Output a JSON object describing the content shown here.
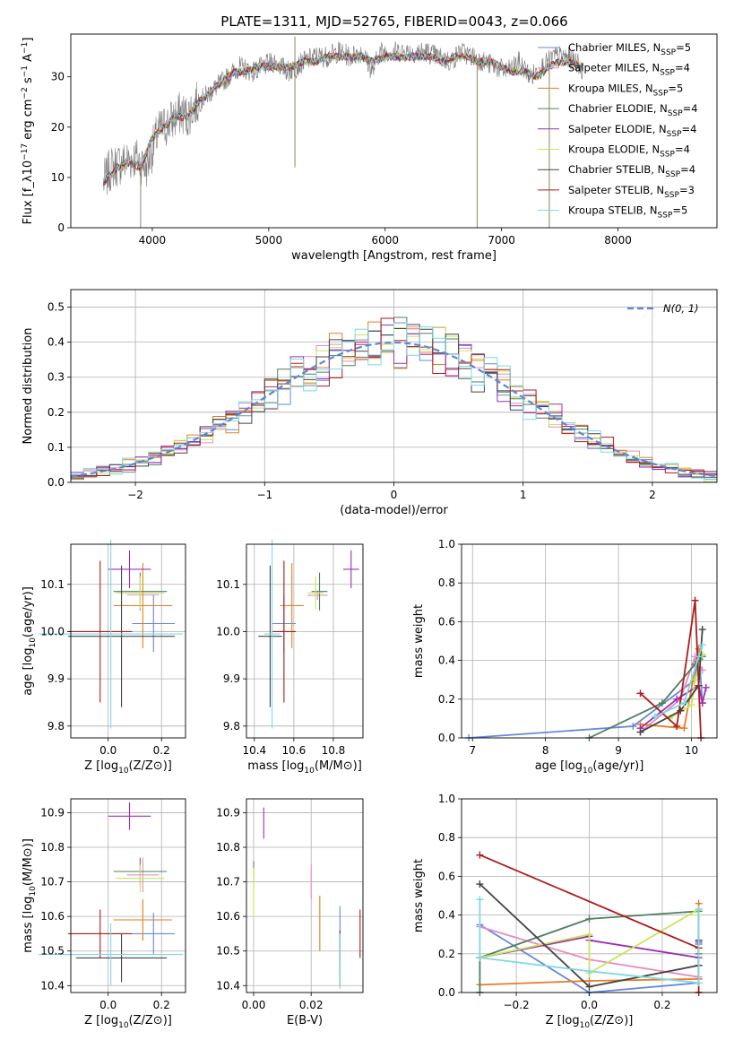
{
  "figure_title": "PLATE=1311, MJD=52765, FIBERID=0043, z=0.066",
  "colors": {
    "Chabrier MILES": "#6688dd",
    "Salpeter MILES": "#e78ac3",
    "Kroupa MILES": "#e67e22",
    "Chabrier ELODIE": "#4f7f5f",
    "Salpeter ELODIE": "#9b30b0",
    "Kroupa ELODIE": "#c8e65a",
    "Chabrier STELIB": "#444444",
    "Salpeter STELIB": "#b01a1a",
    "Kroupa STELIB": "#7fd8e6",
    "normal": "#5b87d6"
  },
  "chart_data": [
    {
      "id": "spectrum",
      "type": "line",
      "title": "PLATE=1311, MJD=52765, FIBERID=0043, z=0.066",
      "xlabel": "wavelength [Angstrom, rest frame]",
      "ylabel": "Flux [f_λ10^-17 erg cm^-2 s^-1 A^-1]",
      "xlim": [
        3300,
        8850
      ],
      "ylim": [
        0,
        38.5
      ],
      "xticks": [
        4000,
        5000,
        6000,
        7000,
        8000
      ],
      "yticks": [
        0,
        10,
        20,
        30
      ],
      "grid": false,
      "legend_position": "top-right",
      "legend": [
        {
          "name": "Chabrier MILES",
          "nssp": "5"
        },
        {
          "name": "Salpeter MILES",
          "nssp": "4"
        },
        {
          "name": "Kroupa MILES",
          "nssp": "5"
        },
        {
          "name": "Chabrier ELODIE",
          "nssp": "4"
        },
        {
          "name": "Salpeter ELODIE",
          "nssp": "4"
        },
        {
          "name": "Kroupa ELODIE",
          "nssp": "4"
        },
        {
          "name": "Chabrier STELIB",
          "nssp": "4"
        },
        {
          "name": "Salpeter STELIB",
          "nssp": "3"
        },
        {
          "name": "Kroupa STELIB",
          "nssp": "5"
        }
      ],
      "observed_spectrum": {
        "x": [
          3580,
          3650,
          3750,
          3850,
          3950,
          4050,
          4150,
          4250,
          4300,
          4350,
          4450,
          4550,
          4650,
          4750,
          4861,
          4950,
          5050,
          5175,
          5300,
          5400,
          5500,
          5600,
          5700,
          5800,
          5893,
          5950,
          6050,
          6150,
          6250,
          6350,
          6450,
          6563,
          6650,
          6750,
          6850,
          6950,
          7050,
          7150,
          7250,
          7350,
          7450,
          7550,
          7650,
          7700
        ],
        "y": [
          9,
          12,
          13,
          14,
          12,
          19,
          21,
          23,
          22,
          24,
          26,
          28,
          30,
          32,
          31,
          32,
          33,
          31,
          33,
          34,
          34,
          35,
          34,
          35,
          31,
          35,
          35,
          35,
          35,
          35,
          34,
          33,
          35,
          34,
          33,
          32,
          31,
          33,
          30,
          32,
          34,
          34,
          33,
          31
        ]
      },
      "model_spectrum": {
        "x": [
          3580,
          3700,
          3800,
          3900,
          4000,
          4100,
          4200,
          4300,
          4400,
          4500,
          4600,
          4700,
          4800,
          4900,
          5000,
          5100,
          5200,
          5300,
          5400,
          5500,
          5600,
          5700,
          5800,
          5900,
          6000,
          6100,
          6200,
          6300,
          6400,
          6500,
          6600,
          6700,
          6800,
          6900,
          7000,
          7100,
          7200,
          7300,
          7400,
          7500,
          7600,
          7700
        ],
        "y": [
          9,
          12,
          13,
          12,
          18,
          20,
          22,
          22,
          25,
          27,
          29,
          31,
          31,
          32,
          32,
          32,
          32,
          33,
          33,
          34,
          34,
          34,
          34,
          33,
          34,
          34,
          34,
          34,
          34,
          33,
          34,
          34,
          33,
          33,
          32,
          31,
          31,
          30,
          32,
          33,
          33,
          32
        ]
      }
    },
    {
      "id": "residuals",
      "type": "line",
      "xlabel": "(data-model)/error",
      "ylabel": "Normed distribution",
      "xlim": [
        -2.5,
        2.5
      ],
      "ylim": [
        0,
        0.55
      ],
      "xticks": [
        -2,
        -1,
        0,
        1,
        2
      ],
      "yticks": [
        0.0,
        0.1,
        0.2,
        0.3,
        0.4,
        0.5
      ],
      "grid": true,
      "legend_position": "top-right",
      "legend_label": "N(0, 1)",
      "bin_width": 0.1,
      "hist_approx": "normal density with per-bin scatter",
      "curve": "N(0, 1) density, dashed"
    },
    {
      "id": "age-vs-Z",
      "type": "scatter",
      "xlabel": "Z [log10(Z/Z⊙)]",
      "ylabel": "age [log10(age/yr)]",
      "xlim": [
        -0.14,
        0.29
      ],
      "ylim": [
        9.775,
        10.185
      ],
      "xticks": [
        0.0,
        0.2
      ],
      "yticks": [
        9.8,
        9.9,
        10.0,
        10.1
      ],
      "grid": true,
      "points": [
        {
          "model": "Chabrier MILES",
          "x": 0.17,
          "xerr": 0.08,
          "y": 10.017,
          "yerr": 0.06
        },
        {
          "model": "Salpeter MILES",
          "x": 0.13,
          "xerr": 0.06,
          "y": 10.078,
          "yerr": 0.01
        },
        {
          "model": "Kroupa MILES",
          "x": 0.13,
          "xerr": 0.11,
          "y": 10.055,
          "yerr": 0.09
        },
        {
          "model": "Chabrier ELODIE",
          "x": 0.12,
          "xerr": 0.1,
          "y": 10.085,
          "yerr": 0.04
        },
        {
          "model": "Salpeter ELODIE",
          "x": 0.08,
          "xerr": 0.08,
          "y": 10.132,
          "yerr": 0.04
        },
        {
          "model": "Kroupa ELODIE",
          "x": 0.12,
          "xerr": 0.09,
          "y": 10.082,
          "yerr": 0.035
        },
        {
          "model": "Chabrier STELIB",
          "x": 0.05,
          "xerr": 0.2,
          "y": 9.99,
          "yerr": 0.15
        },
        {
          "model": "Salpeter STELIB",
          "x": -0.03,
          "xerr": 0.12,
          "y": 10.0,
          "yerr": 0.15
        },
        {
          "model": "Kroupa STELIB",
          "x": 0.01,
          "xerr": 0.27,
          "y": 9.995,
          "yerr": 0.2
        }
      ]
    },
    {
      "id": "age-vs-mass",
      "type": "scatter",
      "xlabel": "mass [log10(M/M⊙)]",
      "ylabel": "",
      "xlim": [
        10.36,
        10.95
      ],
      "ylim": [
        9.775,
        10.185
      ],
      "xticks": [
        10.4,
        10.6,
        10.8
      ],
      "yticks": [
        9.8,
        9.9,
        10.0,
        10.1
      ],
      "grid": true,
      "points": [
        {
          "model": "Chabrier MILES",
          "x": 10.55,
          "xerr": 0.06,
          "y": 10.017,
          "yerr": 0.06
        },
        {
          "model": "Salpeter MILES",
          "x": 10.72,
          "xerr": 0.05,
          "y": 10.077,
          "yerr": 0.01
        },
        {
          "model": "Kroupa MILES",
          "x": 10.59,
          "xerr": 0.06,
          "y": 10.055,
          "yerr": 0.09
        },
        {
          "model": "Chabrier ELODIE",
          "x": 10.73,
          "xerr": 0.04,
          "y": 10.085,
          "yerr": 0.04
        },
        {
          "model": "Salpeter ELODIE",
          "x": 10.89,
          "xerr": 0.04,
          "y": 10.132,
          "yerr": 0.04
        },
        {
          "model": "Kroupa ELODIE",
          "x": 10.71,
          "xerr": 0.04,
          "y": 10.082,
          "yerr": 0.035
        },
        {
          "model": "Chabrier STELIB",
          "x": 10.48,
          "xerr": 0.06,
          "y": 9.99,
          "yerr": 0.15
        },
        {
          "model": "Salpeter STELIB",
          "x": 10.55,
          "xerr": 0.06,
          "y": 10.0,
          "yerr": 0.15
        },
        {
          "model": "Kroupa STELIB",
          "x": 10.49,
          "xerr": 0.04,
          "y": 9.995,
          "yerr": 0.2
        }
      ]
    },
    {
      "id": "mass-weight-vs-age",
      "type": "line",
      "xlabel": "age [log10(age/yr)]",
      "ylabel": "mass weight",
      "xlim": [
        6.85,
        10.35
      ],
      "ylim": [
        0,
        1.0
      ],
      "xticks": [
        7,
        8,
        9,
        10
      ],
      "yticks": [
        0.0,
        0.2,
        0.4,
        0.6,
        0.8,
        1.0
      ],
      "grid": true,
      "series": [
        {
          "model": "Chabrier MILES",
          "x": [
            6.95,
            9.2,
            10.05,
            10.1,
            10.15
          ],
          "y": [
            0.0,
            0.06,
            0.3,
            0.46,
            0.18
          ]
        },
        {
          "model": "Salpeter MILES",
          "x": [
            9.3,
            9.85,
            10.05,
            10.15
          ],
          "y": [
            0.03,
            0.2,
            0.42,
            0.35
          ]
        },
        {
          "model": "Kroupa MILES",
          "x": [
            9.3,
            9.9,
            10.1,
            10.15
          ],
          "y": [
            0.07,
            0.05,
            0.46,
            0.43
          ]
        },
        {
          "model": "Chabrier ELODIE",
          "x": [
            8.6,
            9.6,
            10.05,
            10.15
          ],
          "y": [
            0.0,
            0.18,
            0.38,
            0.42
          ]
        },
        {
          "model": "Salpeter ELODIE",
          "x": [
            9.3,
            9.8,
            10.1,
            10.15,
            10.2
          ],
          "y": [
            0.05,
            0.2,
            0.27,
            0.18,
            0.26
          ]
        },
        {
          "model": "Kroupa ELODIE",
          "x": [
            9.7,
            10.0,
            10.05,
            10.15
          ],
          "y": [
            0.1,
            0.17,
            0.3,
            0.43
          ]
        },
        {
          "model": "Chabrier STELIB",
          "x": [
            9.3,
            9.85,
            10.1,
            10.15
          ],
          "y": [
            0.03,
            0.14,
            0.27,
            0.56
          ]
        },
        {
          "model": "Salpeter STELIB",
          "x": [
            9.3,
            9.8,
            10.05,
            10.13
          ],
          "y": [
            0.23,
            0.06,
            0.71,
            0.0
          ]
        },
        {
          "model": "Kroupa STELIB",
          "x": [
            9.5,
            9.9,
            10.1,
            10.15
          ],
          "y": [
            0.11,
            0.18,
            0.42,
            0.48
          ]
        }
      ]
    },
    {
      "id": "mass-vs-Z",
      "type": "scatter",
      "xlabel": "Z [log10(Z/Z⊙)]",
      "ylabel": "mass [log10(M/M⊙)]",
      "xlim": [
        -0.14,
        0.29
      ],
      "ylim": [
        10.38,
        10.94
      ],
      "xticks": [
        0.0,
        0.2
      ],
      "yticks": [
        10.4,
        10.5,
        10.6,
        10.7,
        10.8,
        10.9
      ],
      "grid": true,
      "points": [
        {
          "model": "Chabrier MILES",
          "x": 0.17,
          "xerr": 0.08,
          "y": 10.55,
          "yerr": 0.06
        },
        {
          "model": "Salpeter MILES",
          "x": 0.13,
          "xerr": 0.06,
          "y": 10.72,
          "yerr": 0.05
        },
        {
          "model": "Kroupa MILES",
          "x": 0.13,
          "xerr": 0.11,
          "y": 10.59,
          "yerr": 0.06
        },
        {
          "model": "Chabrier ELODIE",
          "x": 0.12,
          "xerr": 0.1,
          "y": 10.73,
          "yerr": 0.04
        },
        {
          "model": "Salpeter ELODIE",
          "x": 0.08,
          "xerr": 0.08,
          "y": 10.89,
          "yerr": 0.04
        },
        {
          "model": "Kroupa ELODIE",
          "x": 0.12,
          "xerr": 0.09,
          "y": 10.71,
          "yerr": 0.04
        },
        {
          "model": "Chabrier STELIB",
          "x": 0.05,
          "xerr": 0.17,
          "y": 10.48,
          "yerr": 0.07
        },
        {
          "model": "Salpeter STELIB",
          "x": -0.03,
          "xerr": 0.12,
          "y": 10.55,
          "yerr": 0.07
        },
        {
          "model": "Kroupa STELIB",
          "x": 0.01,
          "xerr": 0.27,
          "y": 10.49,
          "yerr": 0.09
        }
      ]
    },
    {
      "id": "mass-vs-ebv",
      "type": "scatter",
      "xlabel": "E(B-V)",
      "ylabel": "",
      "xlim": [
        -0.0025,
        0.038
      ],
      "ylim": [
        10.38,
        10.94
      ],
      "xticks": [
        0.0,
        0.02
      ],
      "yticks": [
        10.4,
        10.5,
        10.6,
        10.7,
        10.8,
        10.9
      ],
      "grid": true,
      "points": [
        {
          "model": "Chabrier MILES",
          "x": 0.03,
          "y": 10.55,
          "yerr": 0.08
        },
        {
          "model": "Salpeter MILES",
          "x": 0.02,
          "y": 10.7,
          "yerr": 0.05
        },
        {
          "model": "Kroupa MILES",
          "x": 0.023,
          "y": 10.58,
          "yerr": 0.08
        },
        {
          "model": "Chabrier ELODIE",
          "x": 0.0,
          "y": 10.72,
          "yerr": 0.04
        },
        {
          "model": "Salpeter ELODIE",
          "x": 0.0035,
          "y": 10.87,
          "yerr": 0.045
        },
        {
          "model": "Kroupa ELODIE",
          "x": 0.0,
          "y": 10.67,
          "yerr": 0.07
        },
        {
          "model": "Chabrier STELIB",
          "x": 0.03,
          "y": 10.48,
          "yerr": 0.08
        },
        {
          "model": "Salpeter STELIB",
          "x": 0.037,
          "y": 10.55,
          "yerr": 0.07
        },
        {
          "model": "Kroupa STELIB",
          "x": 0.03,
          "y": 10.47,
          "yerr": 0.08
        }
      ]
    },
    {
      "id": "mass-weight-vs-Z",
      "type": "line",
      "xlabel": "Z [log10(Z/Z⊙)]",
      "ylabel": "mass weight",
      "xlim": [
        -0.35,
        0.35
      ],
      "ylim": [
        0,
        1.0
      ],
      "xticks": [
        -0.2,
        0.0,
        0.2
      ],
      "yticks": [
        0.0,
        0.2,
        0.4,
        0.6,
        0.8,
        1.0
      ],
      "grid": true,
      "series": [
        {
          "model": "Chabrier MILES",
          "x": [
            -0.3,
            0.0,
            0.3,
            0.3
          ],
          "y": [
            0.35,
            0.0,
            0.05,
            0.25
          ]
        },
        {
          "model": "Salpeter MILES",
          "x": [
            -0.3,
            0.0,
            0.3,
            0.3
          ],
          "y": [
            0.34,
            0.17,
            0.08,
            0.42
          ]
        },
        {
          "model": "Kroupa MILES",
          "x": [
            -0.3,
            0.0,
            0.3,
            0.3
          ],
          "y": [
            0.04,
            0.06,
            0.07,
            0.46
          ]
        },
        {
          "model": "Chabrier ELODIE",
          "x": [
            -0.3,
            -0.3,
            0.0,
            0.3,
            0.3
          ],
          "y": [
            0.0,
            0.18,
            0.38,
            0.42,
            0.2
          ]
        },
        {
          "model": "Salpeter ELODIE",
          "x": [
            -0.3,
            0.0,
            0.0,
            0.3,
            0.3
          ],
          "y": [
            0.18,
            0.29,
            0.27,
            0.18,
            0.26
          ]
        },
        {
          "model": "Kroupa ELODIE",
          "x": [
            -0.3,
            0.0,
            0.0,
            0.3,
            0.3
          ],
          "y": [
            0.18,
            0.3,
            0.1,
            0.43,
            0.4
          ]
        },
        {
          "model": "Chabrier STELIB",
          "x": [
            -0.3,
            0.0,
            0.3,
            0.3
          ],
          "y": [
            0.56,
            0.03,
            0.14,
            0.27
          ]
        },
        {
          "model": "Salpeter STELIB",
          "x": [
            -0.3,
            0.3,
            0.3
          ],
          "y": [
            0.71,
            0.23,
            0.0
          ]
        },
        {
          "model": "Kroupa STELIB",
          "x": [
            -0.3,
            -0.3,
            0.0,
            0.3,
            0.3
          ],
          "y": [
            0.48,
            0.18,
            0.11,
            0.05,
            0.43
          ]
        }
      ]
    }
  ]
}
